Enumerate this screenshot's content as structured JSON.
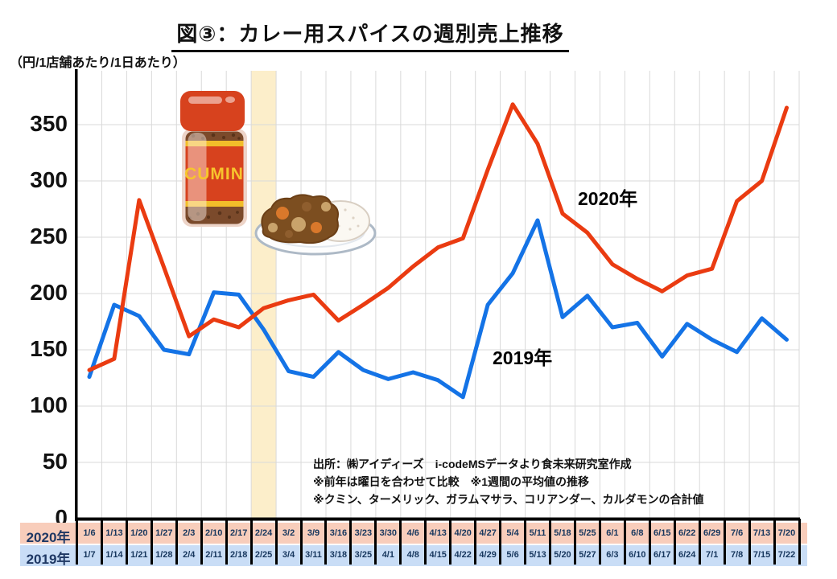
{
  "page": {
    "title": "図③：カレー用スパイスの週別売上推移",
    "unit_label": "（円/1店舗あたり/1日あたり）"
  },
  "legend": {
    "label_2020": "2020年",
    "label_2019": "2019年"
  },
  "row_headers": {
    "r2020": "2020年",
    "r2019": "2019年"
  },
  "bottle_label": "CUMIN",
  "annotation": {
    "line1": "出所：㈱アイディーズ　i-codeMSデータより食未来研究室作成",
    "line2": "※前年は曜日を合わせて比較　※1週間の平均値の推移",
    "line3": "※クミン、ターメリック、ガラムマサラ、コリアンダー、カルダモンの合計値"
  },
  "colors": {
    "red_line": "#EA3B11",
    "blue_line": "#1473E6",
    "grid": "#D9D9D9",
    "highlight_band": "#FCEECA",
    "row_2020_bg": "#F8CDBB",
    "row_2019_bg": "#C9DDF6",
    "date_text": "#17375E",
    "axis": "#000000"
  },
  "chart_data": {
    "type": "line",
    "title": "図③：カレー用スパイスの週別売上推移",
    "ylabel": "円/1店舗あたり/1日あたり",
    "ylim": [
      0,
      350
    ],
    "yticks": [
      0,
      50,
      100,
      150,
      200,
      250,
      300,
      350
    ],
    "grid": true,
    "legend_position": "inline",
    "highlight": {
      "column_index": 7,
      "color": "#FCEECA",
      "note_dates": [
        "2/24",
        "2/25"
      ]
    },
    "series": [
      {
        "name": "2020年",
        "color": "#EA3B11",
        "x": [
          "1/6",
          "1/13",
          "1/20",
          "1/27",
          "2/3",
          "2/10",
          "2/17",
          "2/24",
          "3/2",
          "3/9",
          "3/16",
          "3/23",
          "3/30",
          "4/6",
          "4/13",
          "4/20",
          "4/27",
          "5/4",
          "5/11",
          "5/18",
          "5/25",
          "6/1",
          "6/8",
          "6/15",
          "6/22",
          "6/29",
          "7/6",
          "7/13",
          "7/20"
        ],
        "values": [
          132,
          142,
          283,
          223,
          162,
          177,
          170,
          187,
          194,
          199,
          176,
          190,
          205,
          224,
          241,
          249,
          310,
          368,
          333,
          271,
          254,
          226,
          213,
          202,
          216,
          222,
          282,
          300,
          365
        ]
      },
      {
        "name": "2019年",
        "color": "#1473E6",
        "x": [
          "1/7",
          "1/14",
          "1/21",
          "1/28",
          "2/4",
          "2/11",
          "2/18",
          "2/25",
          "3/4",
          "3/11",
          "3/18",
          "3/25",
          "4/1",
          "4/8",
          "4/15",
          "4/22",
          "4/29",
          "5/6",
          "5/13",
          "5/20",
          "5/27",
          "6/3",
          "6/10",
          "6/17",
          "6/24",
          "7/1",
          "7/8",
          "7/15",
          "7/22"
        ],
        "values": [
          126,
          190,
          180,
          150,
          146,
          201,
          199,
          168,
          131,
          126,
          148,
          132,
          124,
          130,
          123,
          108,
          190,
          218,
          265,
          179,
          198,
          170,
          174,
          144,
          173,
          159,
          148,
          178,
          159
        ]
      }
    ]
  }
}
